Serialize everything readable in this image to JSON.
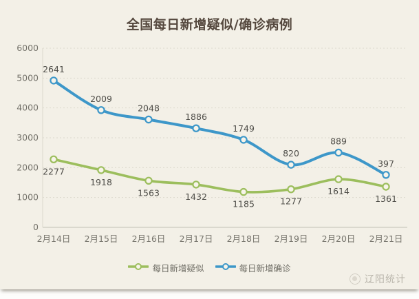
{
  "title": "全国每日新增疑似/确诊病例",
  "legend": {
    "items": [
      {
        "label": "每日新增疑似"
      },
      {
        "label": "每日新增确诊"
      }
    ]
  },
  "watermark": {
    "text": "辽阳统计"
  },
  "chart_data": {
    "type": "line",
    "title": "全国每日新增疑似/确诊病例",
    "categories": [
      "2月14日",
      "2月15日",
      "2月16日",
      "2月17日",
      "2月18日",
      "2月19日",
      "2月20日",
      "2月21日"
    ],
    "series": [
      {
        "key": "suspected",
        "name": "每日新增疑似",
        "color": "#9cbe5d",
        "values": [
          2277,
          1918,
          1563,
          1432,
          1185,
          1277,
          1614,
          1361
        ],
        "data_labels": "below",
        "stacked": false
      },
      {
        "key": "confirmed",
        "name": "每日新增确诊",
        "color": "#3d97c9",
        "values": [
          2641,
          2009,
          2048,
          1886,
          1749,
          820,
          889,
          397
        ],
        "data_labels": "above",
        "stacked": true
      }
    ],
    "ylim": [
      0,
      6000
    ],
    "yticks": [
      0,
      1000,
      2000,
      3000,
      4000,
      5000,
      6000
    ],
    "grid": "horizontal-dashed",
    "legend_position": "bottom",
    "smooth": true,
    "note": "smoothed lines; confirmed series is drawn stacked on top of suspected while its labels show raw values"
  },
  "colors": {
    "background": "#f3f0e7",
    "page": "#fdfdfc",
    "grid": "#dbd8cc",
    "axis": "#c2bfb4",
    "tick_text": "#75736b",
    "label_text": "#4f4e49",
    "title_text": "#55483e",
    "legend_text": "#6e6c64",
    "watermark_text": "#b9b5ab",
    "marker_fill": "#f7f4ea"
  }
}
